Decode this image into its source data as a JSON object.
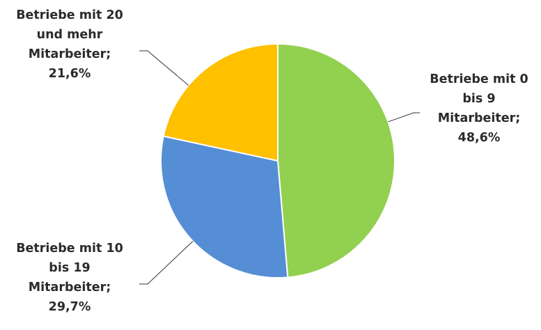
{
  "chart_data": {
    "type": "pie",
    "title": "",
    "slices": [
      {
        "label_lines": [
          "Betriebe mit 0",
          "bis 9",
          "Mitarbeiter;",
          "48,6%"
        ],
        "value": 48.6,
        "color": "#92d050"
      },
      {
        "label_lines": [
          "Betriebe mit 10",
          "bis 19",
          "Mitarbeiter;",
          "29,7%"
        ],
        "value": 29.7,
        "color": "#558ed5"
      },
      {
        "label_lines": [
          "Betriebe mit 20",
          "und mehr",
          "Mitarbeiter;",
          "21,6%"
        ],
        "value": 21.6,
        "color": "#ffc000"
      }
    ],
    "legend": "none"
  }
}
